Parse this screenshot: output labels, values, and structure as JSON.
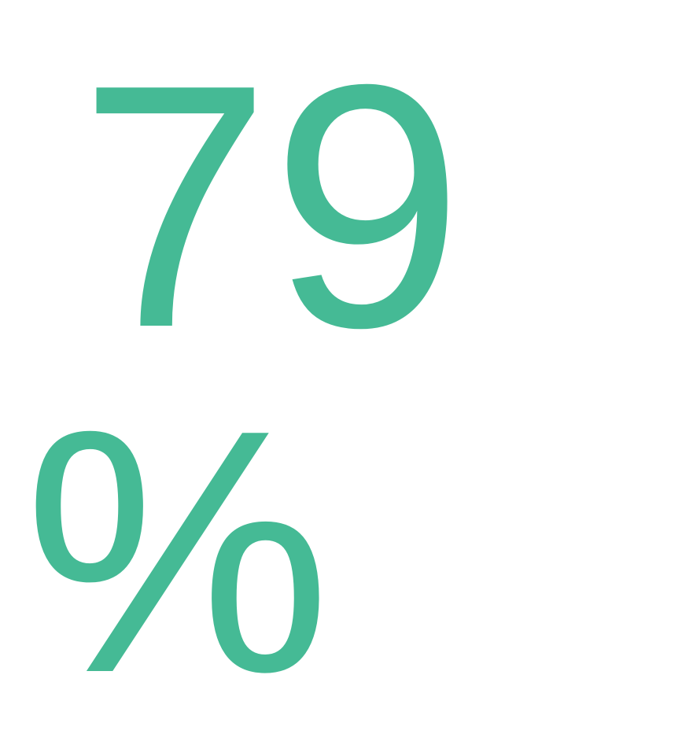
{
  "stat": {
    "number": "79",
    "unit": "%",
    "color": "#45BA95"
  }
}
